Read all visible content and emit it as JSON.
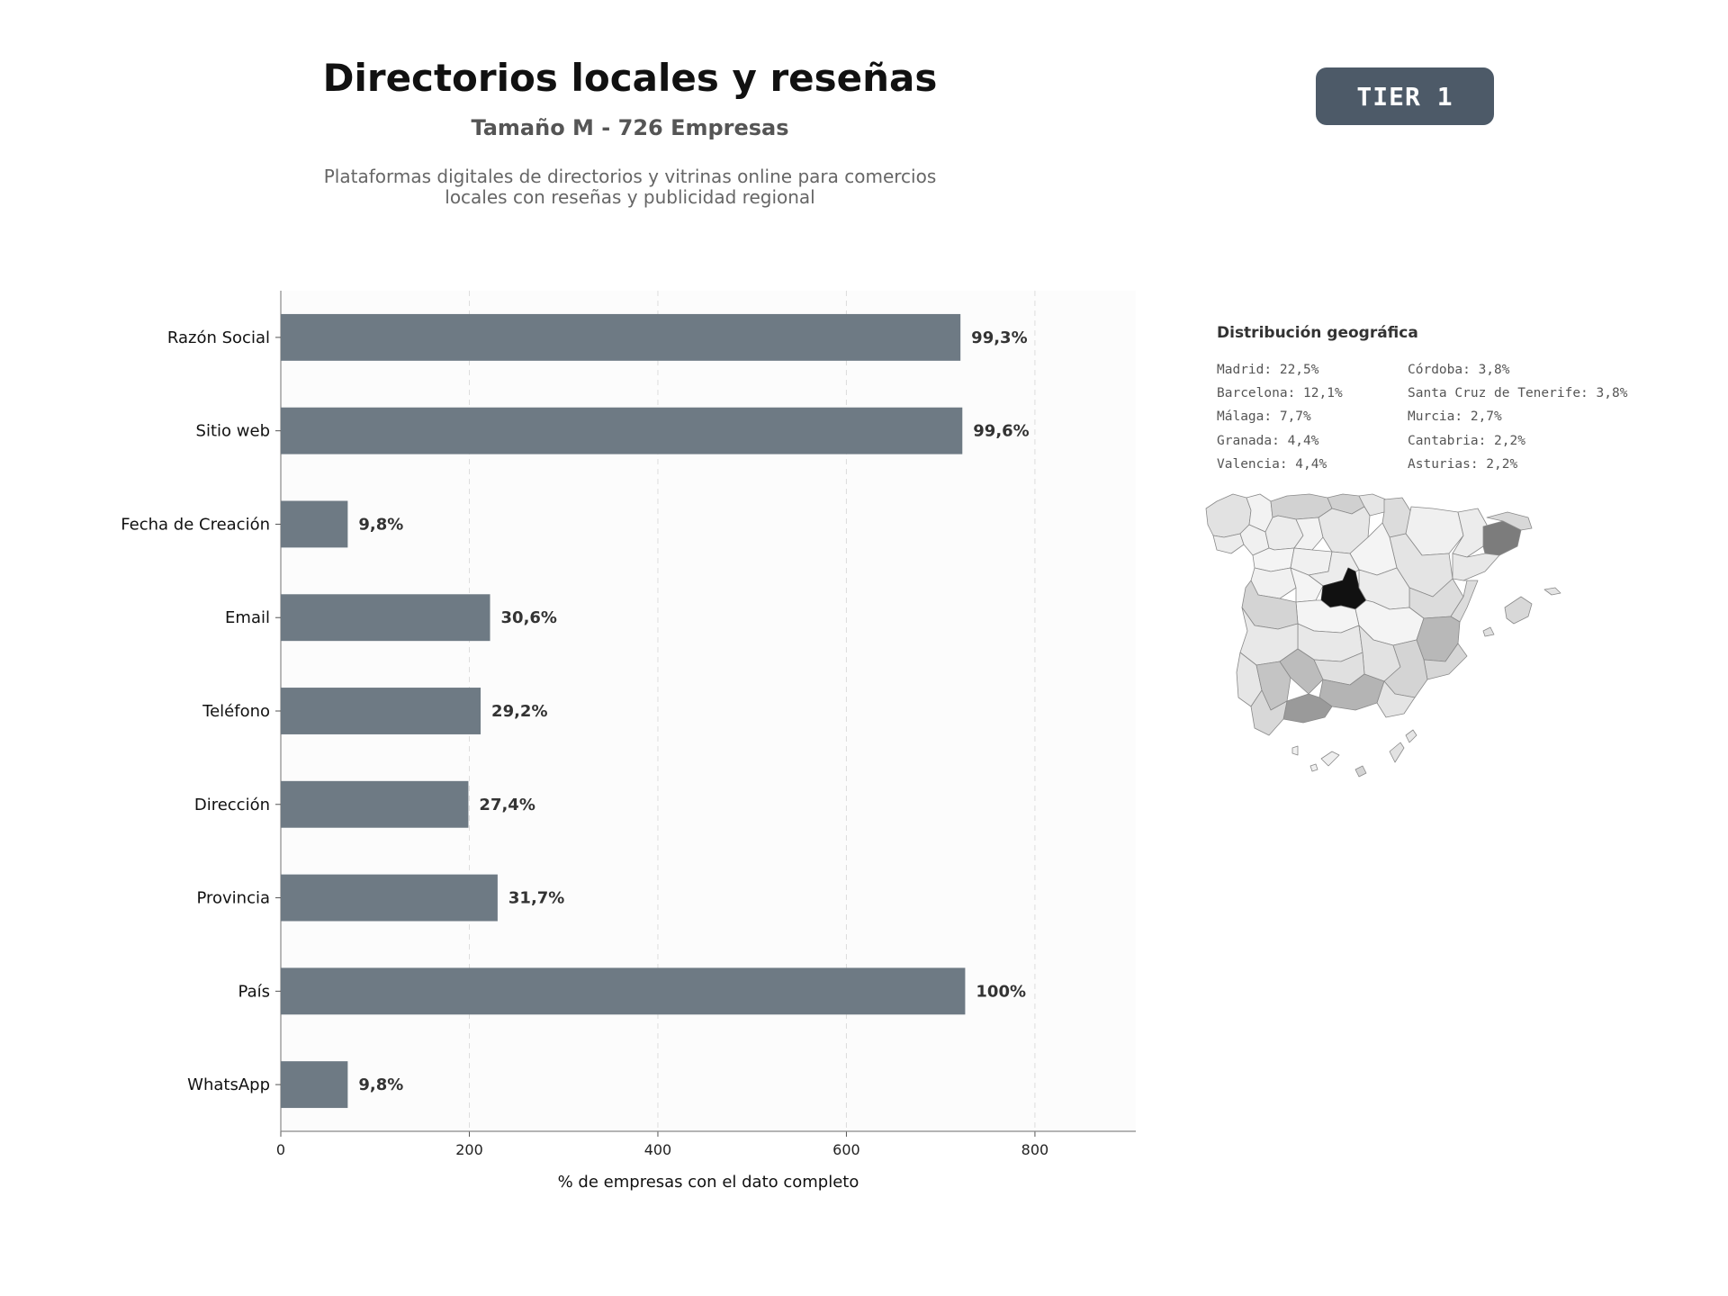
{
  "header": {
    "title": "Directorios locales y reseñas",
    "subtitle": "Tamaño M - 726 Empresas",
    "description_line1": "Plataformas digitales de directorios y vitrinas online para comercios",
    "description_line2": "locales con reseñas y publicidad regional",
    "tier": "TIER 1",
    "tier_color": "#4d5a68"
  },
  "chart_data": {
    "type": "bar",
    "orientation": "horizontal",
    "categories": [
      "Razón Social",
      "Sitio web",
      "Fecha de Creación",
      "Email",
      "Teléfono",
      "Dirección",
      "Provincia",
      "País",
      "WhatsApp"
    ],
    "values": [
      721,
      723,
      71,
      222,
      212,
      199,
      230,
      726,
      71
    ],
    "value_labels": [
      "99,3%",
      "99,6%",
      "9,8%",
      "30,6%",
      "29,2%",
      "27,4%",
      "31,7%",
      "100%",
      "9,8%"
    ],
    "xlabel": "% de empresas con el dato completo",
    "xticks": [
      "0",
      "200",
      "400",
      "600",
      "800"
    ],
    "xlim": [
      0,
      907
    ],
    "grid": "vertical dashed",
    "bar_color": "#6e7a84"
  },
  "geo": {
    "title": "Distribución geográfica",
    "col1": [
      "Madrid: 22,5%",
      "Barcelona: 12,1%",
      "Málaga: 7,7%",
      "Granada: 4,4%",
      "Valencia: 4,4%"
    ],
    "col2": [
      "Córdoba: 3,8%",
      "Santa Cruz de Tenerife: 3,8%",
      "Murcia: 2,7%",
      "Cantabria: 2,2%",
      "Asturias: 2,2%"
    ]
  }
}
